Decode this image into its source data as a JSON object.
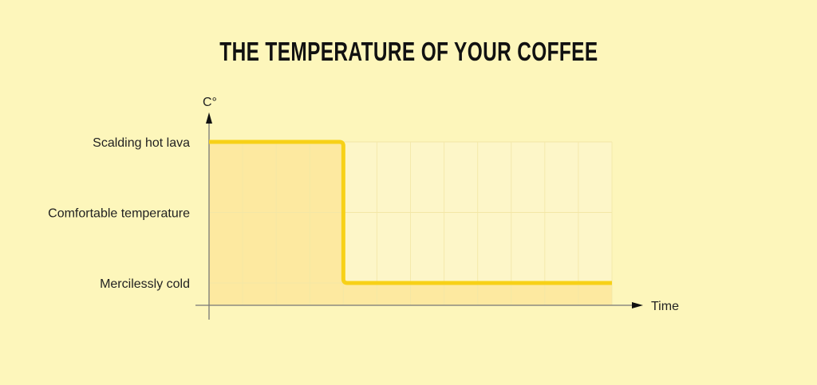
{
  "chart_data": {
    "type": "line",
    "title": "THE TEMPERATURE OF YOUR COFFEE",
    "xlabel": "Time",
    "ylabel": "C°",
    "y_categories": [
      "Mercilessly cold",
      "Comfortable temperature",
      "Scalding hot lava"
    ],
    "series": [
      {
        "x": [
          0,
          4,
          4,
          12
        ],
        "y": [
          "Scalding hot lava",
          "Scalding hot lava",
          "Mercilessly cold",
          "Mercilessly cold"
        ]
      }
    ],
    "xlim": [
      0,
      12
    ],
    "grid": true,
    "legend": "none",
    "colors": {
      "background": "#fdf6bb",
      "line": "#f7d117",
      "fill_under": "#fde9a0",
      "fill_above": "#fdf6c8",
      "axis": "#777777"
    }
  }
}
